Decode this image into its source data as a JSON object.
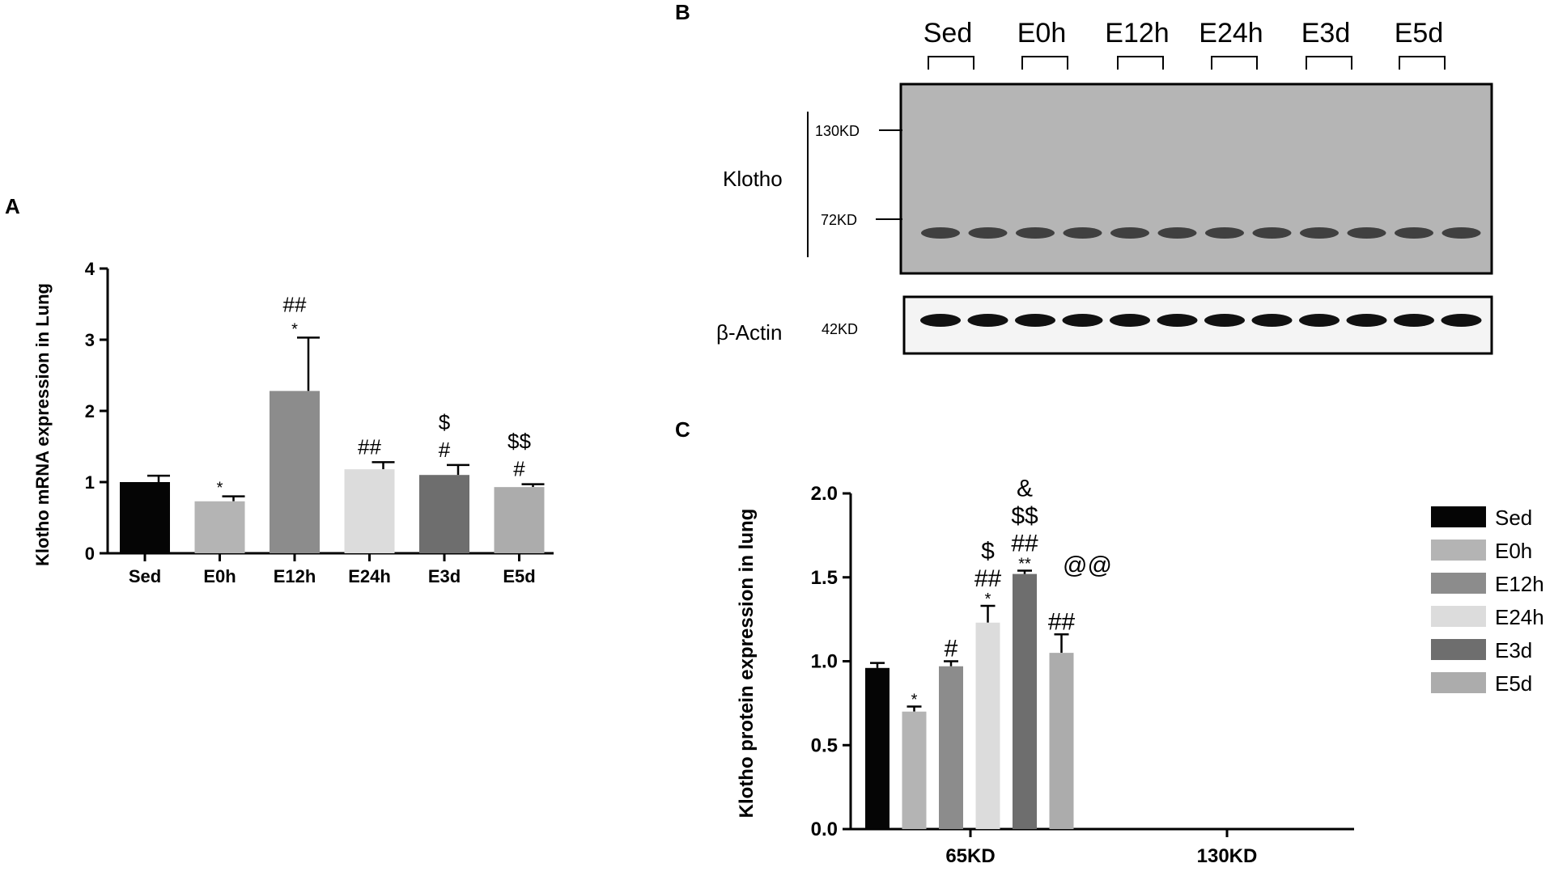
{
  "panels": {
    "a": "A",
    "b": "B",
    "c": "C"
  },
  "colors": {
    "Sed": "#050505",
    "E0h": "#b4b4b4",
    "E12h": "#8c8c8c",
    "E24h": "#dcdcdc",
    "E3d": "#6e6e6e",
    "E5d": "#acacac",
    "blot_bg": "#b5b5b5",
    "band": "#2b2b2b"
  },
  "chart_data": [
    {
      "id": "A",
      "type": "bar",
      "categories": [
        "Sed",
        "E0h",
        "E12h",
        "E24h",
        "E3d",
        "E5d"
      ],
      "values": [
        1.0,
        0.73,
        2.28,
        1.18,
        1.1,
        0.93
      ],
      "errors": [
        0.09,
        0.07,
        0.75,
        0.1,
        0.14,
        0.04
      ],
      "annotations": [
        [],
        [
          "*"
        ],
        [
          "*",
          "##"
        ],
        [
          "##"
        ],
        [
          "#",
          "$"
        ],
        [
          "#",
          "$$"
        ]
      ],
      "ylabel": "Klotho mRNA expression in Lung",
      "ylim": [
        0,
        4
      ],
      "yticks": [
        "0",
        "1",
        "2",
        "3",
        "4"
      ]
    },
    {
      "id": "C",
      "type": "bar",
      "groups": [
        "65KD",
        "130KD"
      ],
      "series": [
        {
          "name": "Sed",
          "values": [
            0.96,
            0
          ],
          "errors": [
            0.03,
            0
          ]
        },
        {
          "name": "E0h",
          "values": [
            0.7,
            0
          ],
          "errors": [
            0.03,
            0
          ]
        },
        {
          "name": "E12h",
          "values": [
            0.97,
            0
          ],
          "errors": [
            0.03,
            0
          ]
        },
        {
          "name": "E24h",
          "values": [
            1.23,
            0
          ],
          "errors": [
            0.1,
            0
          ]
        },
        {
          "name": "E3d",
          "values": [
            1.52,
            0
          ],
          "errors": [
            0.02,
            0
          ]
        },
        {
          "name": "E5d",
          "values": [
            1.05,
            0
          ],
          "errors": [
            0.11,
            0
          ]
        }
      ],
      "annotations": [
        [],
        [
          "*"
        ],
        [
          "#"
        ],
        [
          "*",
          "##",
          "$"
        ],
        [
          "**",
          "##",
          "$$",
          "&"
        ],
        [
          "##",
          "@@"
        ]
      ],
      "ylabel": "Klotho protein expression in lung",
      "ylim": [
        0,
        2.0
      ],
      "yticks": [
        "0.0",
        "0.5",
        "1.0",
        "1.5",
        "2.0"
      ],
      "legend": "right"
    }
  ],
  "blot": {
    "lanes": [
      "Sed",
      "E0h",
      "E12h",
      "E24h",
      "E3d",
      "E5d"
    ],
    "protein": "Klotho",
    "control": "β-Actin",
    "markers": [
      "130KD",
      "72KD"
    ],
    "control_marker": "42KD"
  }
}
